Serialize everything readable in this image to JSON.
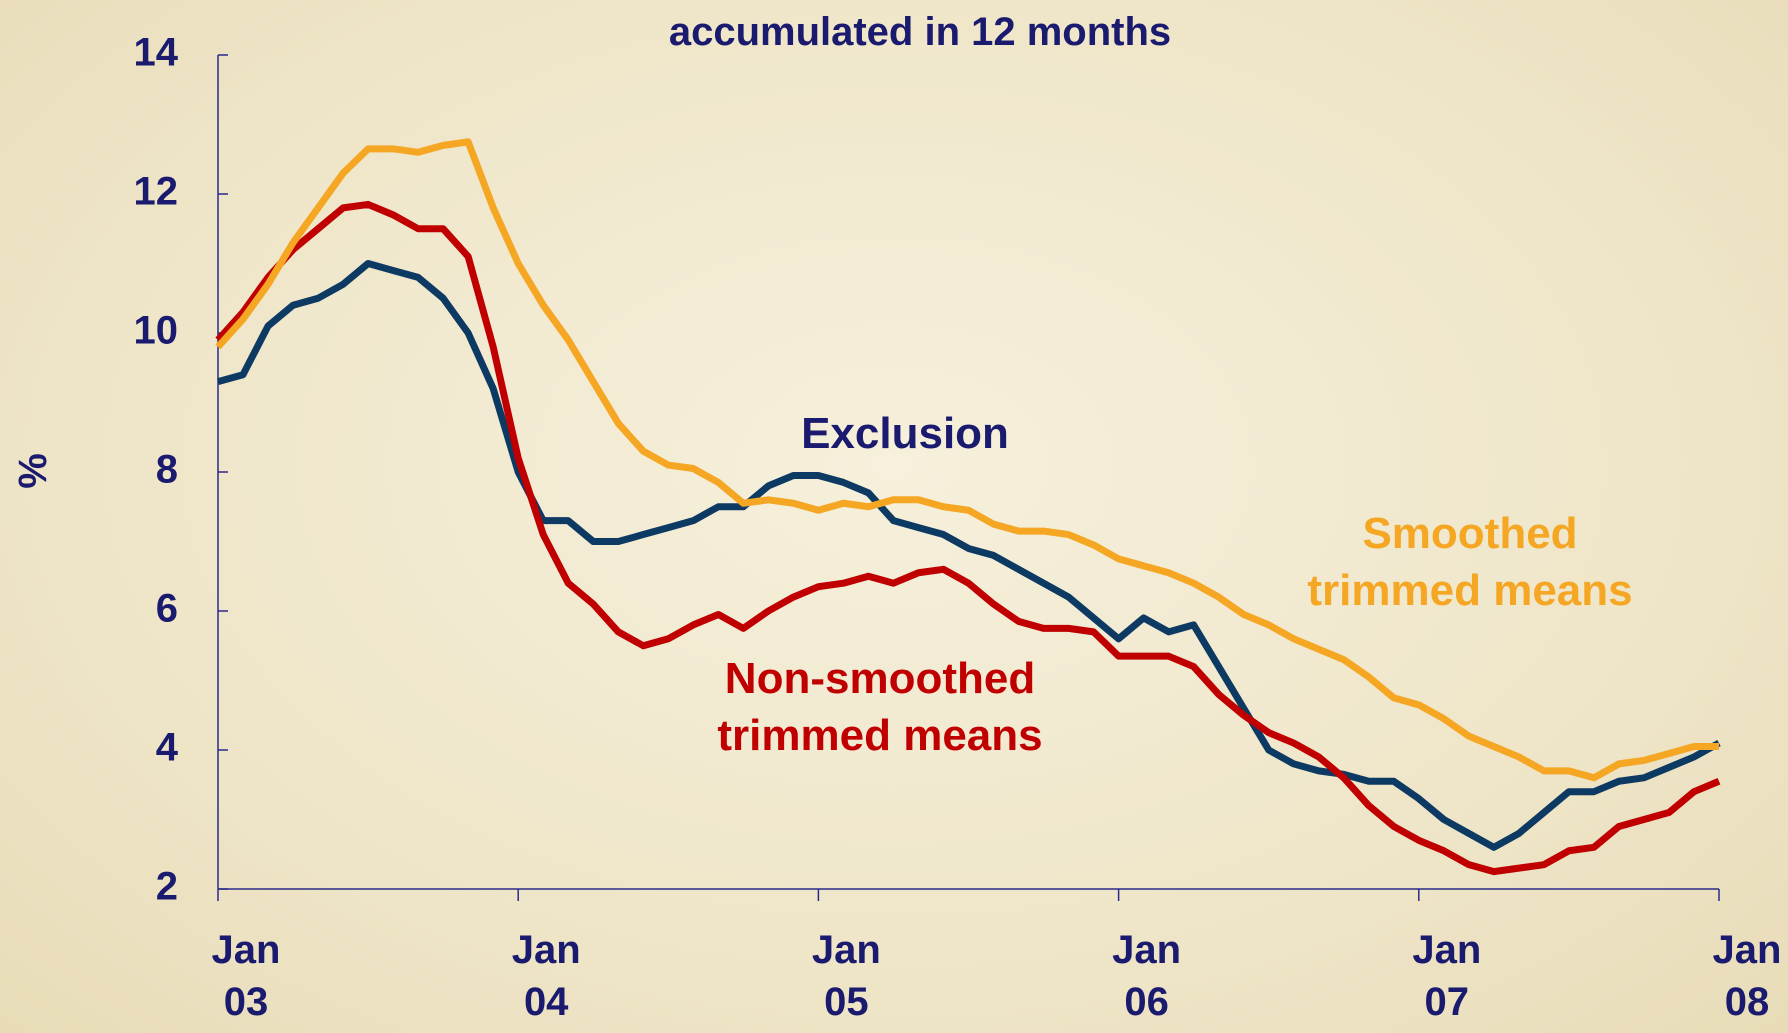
{
  "chart_data": {
    "type": "line",
    "title": "accumulated in 12 months",
    "y_label": "%",
    "categories": [
      "Jan 03",
      null,
      null,
      null,
      null,
      null,
      null,
      null,
      null,
      null,
      null,
      null,
      "Jan 04",
      null,
      null,
      null,
      null,
      null,
      null,
      null,
      null,
      null,
      null,
      null,
      "Jan 05",
      null,
      null,
      null,
      null,
      null,
      null,
      null,
      null,
      null,
      null,
      null,
      "Jan 06",
      null,
      null,
      null,
      null,
      null,
      null,
      null,
      null,
      null,
      null,
      null,
      "Jan 07",
      null,
      null,
      null,
      null,
      null,
      null,
      null,
      null,
      null,
      null,
      null,
      "Jan 08"
    ],
    "series": [
      {
        "name": "Exclusion",
        "color": "#0d3a63",
        "values": [
          9.3,
          9.4,
          10.1,
          10.4,
          10.5,
          10.7,
          11.0,
          10.9,
          10.8,
          10.5,
          10.0,
          9.2,
          8.0,
          7.3,
          7.3,
          7.0,
          7.0,
          7.1,
          7.2,
          7.3,
          7.5,
          7.5,
          7.8,
          7.95,
          7.95,
          7.85,
          7.7,
          7.3,
          7.2,
          7.1,
          6.9,
          6.8,
          6.6,
          6.4,
          6.2,
          5.9,
          5.6,
          5.9,
          5.7,
          5.8,
          5.2,
          4.6,
          4.0,
          3.8,
          3.7,
          3.65,
          3.55,
          3.55,
          3.3,
          3.0,
          2.8,
          2.6,
          2.8,
          3.1,
          3.4,
          3.4,
          3.55,
          3.6,
          3.75,
          3.9,
          4.1
        ]
      },
      {
        "name": "Non-smoothed trimmed means",
        "color": "#c00000",
        "values": [
          9.9,
          10.3,
          10.8,
          11.2,
          11.5,
          11.8,
          11.85,
          11.7,
          11.5,
          11.5,
          11.1,
          9.8,
          8.2,
          7.1,
          6.4,
          6.1,
          5.7,
          5.5,
          5.6,
          5.8,
          5.95,
          5.75,
          6.0,
          6.2,
          6.35,
          6.4,
          6.5,
          6.4,
          6.55,
          6.6,
          6.4,
          6.1,
          5.85,
          5.75,
          5.75,
          5.7,
          5.35,
          5.35,
          5.35,
          5.2,
          4.8,
          4.5,
          4.25,
          4.1,
          3.9,
          3.6,
          3.2,
          2.9,
          2.7,
          2.55,
          2.35,
          2.25,
          2.3,
          2.35,
          2.55,
          2.6,
          2.9,
          3.0,
          3.1,
          3.4,
          3.55
        ]
      },
      {
        "name": "Smoothed trimmed means",
        "color": "#f5a623",
        "values": [
          9.8,
          10.2,
          10.7,
          11.3,
          11.8,
          12.3,
          12.65,
          12.65,
          12.6,
          12.7,
          12.75,
          11.8,
          11.0,
          10.4,
          9.9,
          9.3,
          8.7,
          8.3,
          8.1,
          8.05,
          7.85,
          7.55,
          7.6,
          7.55,
          7.45,
          7.55,
          7.5,
          7.6,
          7.6,
          7.5,
          7.45,
          7.25,
          7.15,
          7.15,
          7.1,
          6.95,
          6.75,
          6.65,
          6.55,
          6.4,
          6.2,
          5.95,
          5.8,
          5.6,
          5.45,
          5.3,
          5.05,
          4.75,
          4.65,
          4.45,
          4.2,
          4.05,
          3.9,
          3.7,
          3.7,
          3.6,
          3.8,
          3.85,
          3.95,
          4.05,
          4.05
        ]
      }
    ],
    "ylim": [
      2,
      14
    ],
    "yticks": [
      2,
      4,
      6,
      8,
      10,
      12,
      14
    ]
  }
}
